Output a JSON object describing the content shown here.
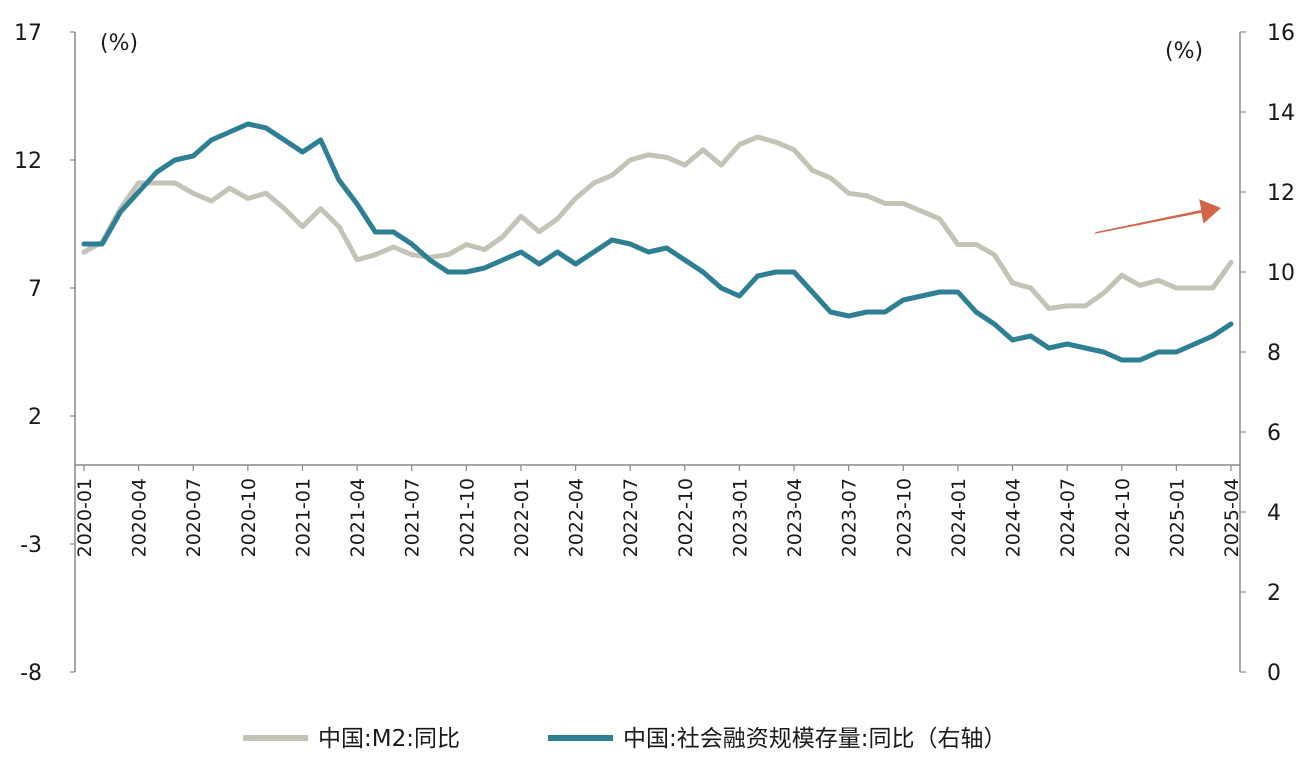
{
  "chart_data": {
    "type": "line",
    "x": [
      "2020-01",
      "2020-02",
      "2020-03",
      "2020-04",
      "2020-05",
      "2020-06",
      "2020-07",
      "2020-08",
      "2020-09",
      "2020-10",
      "2020-11",
      "2020-12",
      "2021-01",
      "2021-02",
      "2021-03",
      "2021-04",
      "2021-05",
      "2021-06",
      "2021-07",
      "2021-08",
      "2021-09",
      "2021-10",
      "2021-11",
      "2021-12",
      "2022-01",
      "2022-02",
      "2022-03",
      "2022-04",
      "2022-05",
      "2022-06",
      "2022-07",
      "2022-08",
      "2022-09",
      "2022-10",
      "2022-11",
      "2022-12",
      "2023-01",
      "2023-02",
      "2023-03",
      "2023-04",
      "2023-05",
      "2023-06",
      "2023-07",
      "2023-08",
      "2023-09",
      "2023-10",
      "2023-11",
      "2023-12",
      "2024-01",
      "2024-02",
      "2024-03",
      "2024-04",
      "2024-05",
      "2024-06",
      "2024-07",
      "2024-08",
      "2024-09",
      "2024-10",
      "2024-11",
      "2024-12",
      "2025-01",
      "2025-02",
      "2025-03",
      "2025-04"
    ],
    "x_tick_labels": [
      "2020-01",
      "2020-04",
      "2020-07",
      "2020-10",
      "2021-01",
      "2021-04",
      "2021-07",
      "2021-10",
      "2022-01",
      "2022-04",
      "2022-07",
      "2022-10",
      "2023-01",
      "2023-04",
      "2023-07",
      "2023-10",
      "2024-01",
      "2024-04",
      "2024-07",
      "2024-10",
      "2025-01",
      "2025-04"
    ],
    "left_axis": {
      "unit": "(%)",
      "ylim": [
        -8,
        17
      ],
      "ticks": [
        "17",
        "12",
        "7",
        "2",
        "-3",
        "-8"
      ]
    },
    "right_axis": {
      "unit": "(%)",
      "ylim": [
        0,
        16
      ],
      "ticks": [
        "16",
        "14",
        "12",
        "10",
        "8",
        "6",
        "4",
        "2",
        "0"
      ]
    },
    "series": [
      {
        "name": "中国:M2:同比",
        "axis": "left",
        "color": "#c5c3b6",
        "values": [
          8.4,
          8.8,
          10.1,
          11.1,
          11.1,
          11.1,
          10.7,
          10.4,
          10.9,
          10.5,
          10.7,
          10.1,
          9.4,
          10.1,
          9.4,
          8.1,
          8.3,
          8.6,
          8.3,
          8.2,
          8.3,
          8.7,
          8.5,
          9.0,
          9.8,
          9.2,
          9.7,
          10.5,
          11.1,
          11.4,
          12.0,
          12.2,
          12.1,
          11.8,
          12.4,
          11.8,
          12.6,
          12.9,
          12.7,
          12.4,
          11.6,
          11.3,
          10.7,
          10.6,
          10.3,
          10.3,
          10.0,
          9.7,
          8.7,
          8.7,
          8.3,
          7.2,
          7.0,
          6.2,
          6.3,
          6.3,
          6.8,
          7.5,
          7.1,
          7.3,
          7.0,
          7.0,
          7.0,
          8.0
        ]
      },
      {
        "name": "中国:社会融资规模存量:同比（右轴）",
        "axis": "right",
        "color": "#2e7f94",
        "values": [
          10.7,
          10.7,
          11.5,
          12.0,
          12.5,
          12.8,
          12.9,
          13.3,
          13.5,
          13.7,
          13.6,
          13.3,
          13.0,
          13.3,
          12.3,
          11.7,
          11.0,
          11.0,
          10.7,
          10.3,
          10.0,
          10.0,
          10.1,
          10.3,
          10.5,
          10.2,
          10.5,
          10.2,
          10.5,
          10.8,
          10.7,
          10.5,
          10.6,
          10.3,
          10.0,
          9.6,
          9.4,
          9.9,
          10.0,
          10.0,
          9.5,
          9.0,
          8.9,
          9.0,
          9.0,
          9.3,
          9.4,
          9.5,
          9.5,
          9.0,
          8.7,
          8.3,
          8.4,
          8.1,
          8.2,
          8.1,
          8.0,
          7.8,
          7.8,
          8.0,
          8.0,
          8.2,
          8.4,
          8.7
        ]
      }
    ],
    "annotations": [
      {
        "type": "arrow",
        "color": "#d4654a",
        "direction": "up-right"
      }
    ],
    "legend": {
      "placement": "bottom-center"
    },
    "grid": false
  }
}
